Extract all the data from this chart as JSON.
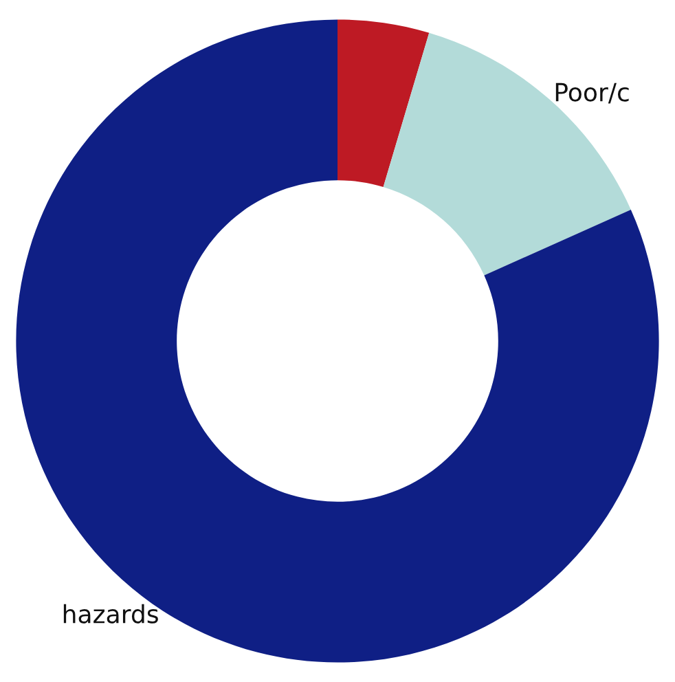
{
  "chart_data": {
    "type": "donut",
    "categories": [
      null,
      "Poor/c",
      "hazards"
    ],
    "values": [
      4.6,
      13.7,
      81.7
    ],
    "colors": [
      "#be1a24",
      "#b3dbd9",
      "#0f1f85"
    ]
  }
}
